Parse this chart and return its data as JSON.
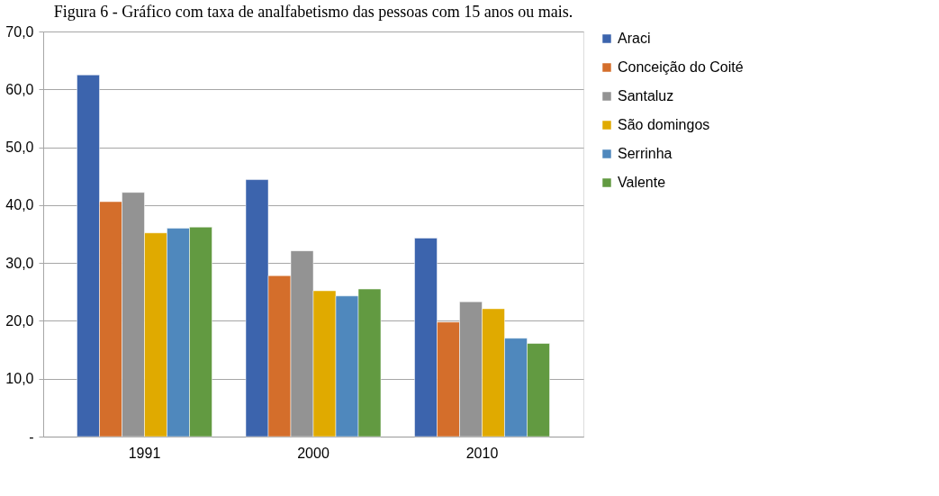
{
  "chart_data": {
    "type": "bar",
    "title": "Figura 6 - Gráfico com taxa de analfabetismo das pessoas com 15 anos ou mais.",
    "categories": [
      "1991",
      "2000",
      "2010"
    ],
    "series": [
      {
        "name": "Araci",
        "color": "#3c64ad",
        "values": [
          62.5,
          44.4,
          34.3
        ]
      },
      {
        "name": "Conceição do Coité",
        "color": "#d46e2b",
        "values": [
          40.6,
          27.8,
          19.8
        ]
      },
      {
        "name": "Santaluz",
        "color": "#939393",
        "values": [
          42.2,
          32.1,
          23.3
        ]
      },
      {
        "name": "São domingos",
        "color": "#e0aa00",
        "values": [
          35.2,
          25.2,
          22.1
        ]
      },
      {
        "name": "Serrinha",
        "color": "#4f88bd",
        "values": [
          36.0,
          24.3,
          17.0
        ]
      },
      {
        "name": "Valente",
        "color": "#629a41",
        "values": [
          36.2,
          25.5,
          16.1
        ]
      }
    ],
    "ylim": [
      0,
      70
    ],
    "yticks": [
      {
        "value": 0,
        "label": "-"
      },
      {
        "value": 10,
        "label": "10,0"
      },
      {
        "value": 20,
        "label": "20,0"
      },
      {
        "value": 30,
        "label": "30,0"
      },
      {
        "value": 40,
        "label": "40,0"
      },
      {
        "value": 50,
        "label": "50,0"
      },
      {
        "value": 60,
        "label": "60,0"
      },
      {
        "value": 70,
        "label": "70,0"
      }
    ],
    "grid": "y",
    "legend": "right"
  }
}
